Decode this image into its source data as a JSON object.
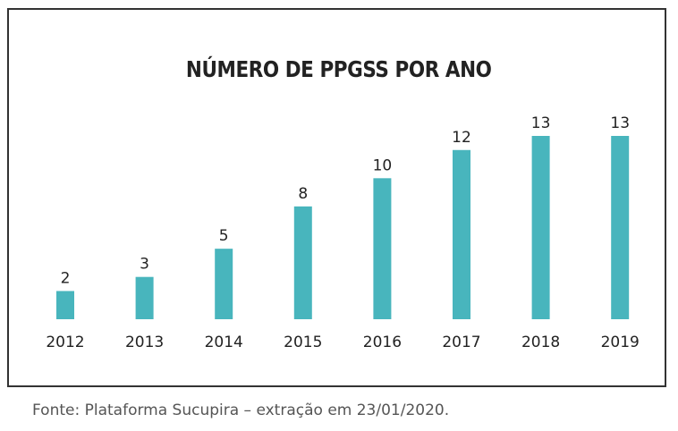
{
  "chart_data": {
    "type": "bar",
    "title": "NÚMERO DE PPGSS POR ANO",
    "categories": [
      "2012",
      "2013",
      "2014",
      "2015",
      "2016",
      "2017",
      "2018",
      "2019"
    ],
    "values": [
      2,
      3,
      5,
      8,
      10,
      12,
      13,
      13
    ],
    "xlabel": "",
    "ylabel": "",
    "ylim": [
      0,
      13
    ],
    "grid": false,
    "legend": "none",
    "bar_color": "#48b5bd"
  },
  "source": "Fonte: Plataforma Sucupira – extração em 23/01/2020."
}
